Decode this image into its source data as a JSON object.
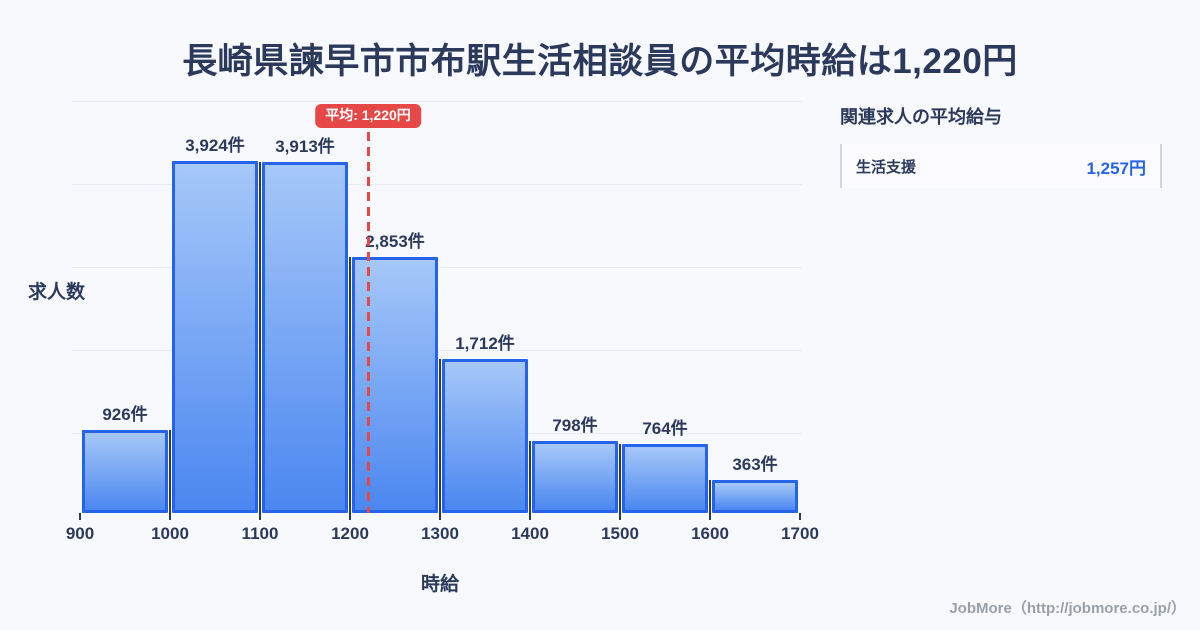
{
  "title": "長崎県諫早市市布駅生活相談員の平均時給は1,220円",
  "chart_data": {
    "type": "bar",
    "title": "長崎県諫早市市布駅生活相談員の平均時給は1,220円",
    "xlabel": "時給",
    "ylabel": "求人数",
    "x_ticks": [
      "900",
      "1000",
      "1100",
      "1200",
      "1300",
      "1400",
      "1500",
      "1600",
      "1700"
    ],
    "x_range": [
      900,
      1700
    ],
    "bin_width": 100,
    "values": [
      926,
      3924,
      3913,
      2853,
      1712,
      798,
      764,
      363
    ],
    "bar_labels": [
      "926件",
      "3,924件",
      "3,913件",
      "2,853件",
      "1,712件",
      "798件",
      "764件",
      "363件"
    ],
    "average": {
      "value": 1220,
      "label": "平均: 1,220円"
    },
    "legend": "none",
    "grid": "horizontal"
  },
  "side_panel": {
    "header": "関連求人の平均給与",
    "items": [
      {
        "label": "生活支援",
        "value": "1,257円"
      }
    ]
  },
  "footer": {
    "credit": "JobMore（http://jobmore.co.jp/）"
  },
  "colors": {
    "background": "#f8f9fc",
    "text_dark": "#2b3a5c",
    "bar_border": "#2563eb",
    "bar_fill_top": "#a6c8f8",
    "bar_fill_bottom": "#4b87f0",
    "average_red": "#e64747",
    "value_blue": "#2563eb",
    "gridline": "#e8ecf3",
    "axis_tick": "#2e3a52",
    "footer_gray": "#9aa0a8"
  }
}
